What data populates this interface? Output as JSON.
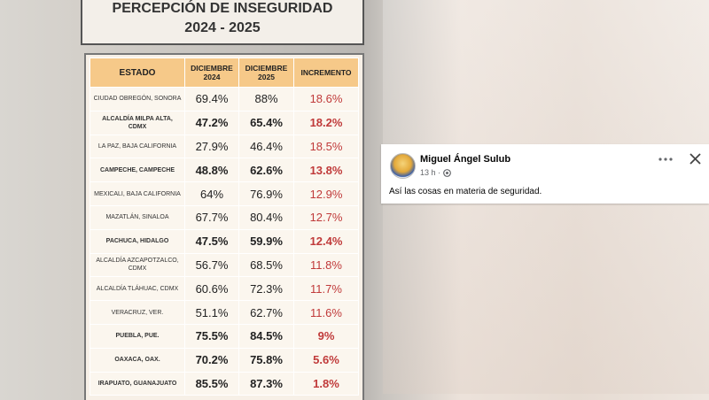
{
  "table_image": {
    "title": "PERCEPCIÓN DE INSEGURIDAD",
    "subtitle": "2024 - 2025",
    "headers": [
      "ESTADO",
      "DICIEMBRE 2024",
      "DICIEMBRE 2025",
      "INCREMENTO"
    ],
    "rows": [
      [
        "CIUDAD OBREGÓN, SONORA",
        "69.4%",
        "88%",
        "18.6%"
      ],
      [
        "ALCALDÍA MILPA ALTA, CDMX",
        "47.2%",
        "65.4%",
        "18.2%"
      ],
      [
        "LA PAZ, BAJA CALIFORNIA",
        "27.9%",
        "46.4%",
        "18.5%"
      ],
      [
        "CAMPECHE, CAMPECHE",
        "48.8%",
        "62.6%",
        "13.8%"
      ],
      [
        "MEXICALI, BAJA CALIFORNIA",
        "64%",
        "76.9%",
        "12.9%"
      ],
      [
        "MAZATLÁN, SINALOA",
        "67.7%",
        "80.4%",
        "12.7%"
      ],
      [
        "PACHUCA, HIDALGO",
        "47.5%",
        "59.9%",
        "12.4%"
      ],
      [
        "ALCALDÍA AZCAPOTZALCO, CDMX",
        "56.7%",
        "68.5%",
        "11.8%"
      ],
      [
        "ALCALDÍA TLÁHUAC, CDMX",
        "60.6%",
        "72.3%",
        "11.7%"
      ],
      [
        "VERACRUZ, VER.",
        "51.1%",
        "62.7%",
        "11.6%"
      ],
      [
        "PUEBLA, PUE.",
        "75.5%",
        "84.5%",
        "9%"
      ],
      [
        "OAXACA, OAX.",
        "70.2%",
        "75.8%",
        "5.6%"
      ],
      [
        "IRAPUATO, GUANAJUATO",
        "85.5%",
        "87.3%",
        "1.8%"
      ]
    ]
  },
  "post": {
    "author": "Miguel Ángel Sulub",
    "time": "13 h ·",
    "text": "Así las cosas en materia de seguridad."
  }
}
